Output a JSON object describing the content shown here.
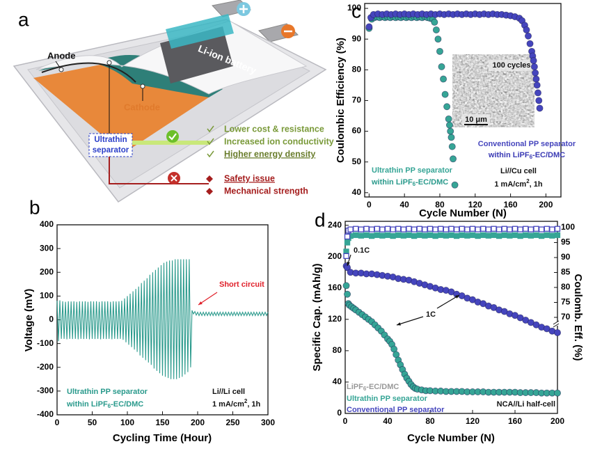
{
  "panel_a": {
    "label": "a",
    "battery": "Li-ion battery",
    "anode": "Anode",
    "cathode": "Cathode",
    "separator": [
      "Ultrathin",
      "separator"
    ],
    "advantages": [
      "Lower cost & resistance",
      "Increased ion conductivity",
      "Higher energy density"
    ],
    "issues": [
      "Safety issue",
      "Mechanical strength"
    ]
  },
  "chart_data": [
    {
      "type": "scatter",
      "panel": "c",
      "xlabel": "Cycle Number (N)",
      "ylabel": "Coulombic Efficiency (%)",
      "xlim": [
        -5,
        217
      ],
      "ylim": [
        38.6,
        101.6
      ],
      "xticks": [
        0,
        40,
        80,
        120,
        160,
        200
      ],
      "yticks": [
        40,
        50,
        60,
        70,
        80,
        90,
        100
      ],
      "series": [
        {
          "name": "Ultrathin PP separator",
          "color": "#36a596",
          "marker": "circle",
          "x": [
            0,
            3,
            6,
            9,
            12,
            15,
            18,
            21,
            24,
            27,
            30,
            33,
            36,
            39,
            42,
            45,
            48,
            51,
            54,
            57,
            60,
            63,
            66,
            69,
            72,
            74,
            76,
            78,
            80,
            82,
            84,
            86,
            88,
            90,
            91,
            92,
            93,
            94,
            95,
            97
          ],
          "values": [
            93.5,
            96.5,
            97,
            97.2,
            97,
            97.3,
            97,
            97.2,
            97,
            97.3,
            97,
            97.2,
            97,
            97.3,
            97,
            97.2,
            97,
            97.3,
            97,
            97.2,
            97,
            97.3,
            97,
            96.8,
            96.5,
            95.5,
            93,
            90,
            86,
            81,
            77,
            72,
            68,
            64,
            62,
            60,
            58,
            55,
            51,
            42.5
          ]
        },
        {
          "name": "Conventional PP separator",
          "color": "#4545bd",
          "marker": "circle",
          "x": [
            0,
            2,
            5,
            10,
            15,
            20,
            25,
            30,
            35,
            40,
            45,
            50,
            55,
            60,
            65,
            70,
            75,
            80,
            85,
            90,
            95,
            100,
            105,
            110,
            115,
            120,
            125,
            130,
            135,
            140,
            145,
            150,
            155,
            160,
            165,
            170,
            173,
            176,
            178,
            180,
            182,
            184,
            185,
            186,
            187,
            188,
            189,
            190,
            191,
            192,
            193
          ],
          "values": [
            94,
            97,
            98,
            98.2,
            98,
            98.2,
            98,
            98.2,
            98,
            98.2,
            98,
            98.2,
            98,
            98.2,
            98,
            98.2,
            98,
            98.2,
            98,
            98.2,
            98,
            98.2,
            98,
            98.2,
            98,
            98.2,
            98,
            98.2,
            98,
            98.2,
            98,
            98,
            97.8,
            97.6,
            97.3,
            96.8,
            96,
            94.5,
            93,
            91,
            88.5,
            86,
            84.5,
            83,
            81,
            79,
            77,
            75,
            72.5,
            70,
            67.5
          ]
        }
      ],
      "annotations": [
        [
          "within LiPF",
          "6",
          "-EC/DMC"
        ],
        [
          "within LiPF",
          "6",
          "-EC/DMC"
        ],
        "Li//Cu cell",
        [
          "1 mA/cm",
          "2",
          ", 1h"
        ],
        "100 cycles",
        "10 μm"
      ]
    },
    {
      "type": "line",
      "panel": "b",
      "xlabel": "Cycling Time (Hour)",
      "ylabel": "Voltage (mV)",
      "xlim": [
        0,
        300
      ],
      "ylim": [
        -400,
        400
      ],
      "xticks": [
        0,
        50,
        100,
        150,
        200,
        250,
        300
      ],
      "yticks": [
        -400,
        -300,
        -200,
        -100,
        0,
        100,
        200,
        300,
        400
      ],
      "x": [
        0,
        2,
        4,
        6,
        8,
        10,
        12,
        14,
        16,
        18,
        20,
        22,
        24,
        26,
        28,
        30,
        32,
        34,
        36,
        38,
        40,
        42,
        44,
        46,
        48,
        50,
        52,
        54,
        56,
        58,
        60,
        62,
        64,
        66,
        68,
        70,
        72,
        74,
        76,
        78,
        80,
        82,
        84,
        86,
        88,
        90,
        92,
        94,
        96,
        98,
        100,
        102,
        104,
        106,
        108,
        110,
        112,
        114,
        116,
        118,
        120,
        122,
        124,
        126,
        128,
        130,
        132,
        134,
        136,
        138,
        140,
        142,
        144,
        146,
        148,
        150,
        152,
        154,
        156,
        158,
        160,
        162,
        164,
        166,
        168,
        170,
        172,
        174,
        176,
        178,
        180,
        182,
        184,
        186,
        188,
        190,
        192,
        194,
        196,
        198,
        200,
        202,
        204,
        206,
        208,
        210,
        212,
        214,
        216,
        218,
        220,
        222,
        224,
        226,
        228,
        230,
        232,
        234,
        236,
        238,
        240,
        242,
        244,
        246,
        248,
        250,
        252,
        254,
        256,
        258,
        260,
        262,
        264,
        266,
        268,
        270,
        272,
        274,
        276,
        278,
        280,
        282,
        284,
        286,
        288,
        290,
        292,
        294,
        296,
        298,
        300
      ],
      "series": [
        {
          "name": "Ultrathin PP separator",
          "color": "#2a9a8c",
          "values": [
            80,
            -90,
            82,
            -80,
            78,
            -80,
            76,
            -82,
            78,
            -80,
            77,
            -81,
            78,
            -80,
            76,
            -82,
            78,
            -80,
            77,
            -81,
            78,
            -80,
            76,
            -82,
            78,
            -80,
            77,
            -81,
            78,
            -80,
            76,
            -82,
            78,
            -80,
            77,
            -81,
            78,
            -80,
            76,
            -82,
            78,
            -80,
            77,
            -81,
            78,
            -80,
            80,
            -84,
            90,
            -95,
            100,
            -105,
            110,
            -115,
            120,
            -125,
            130,
            -135,
            140,
            -150,
            155,
            -160,
            165,
            -170,
            175,
            -180,
            190,
            -190,
            200,
            -205,
            210,
            -215,
            220,
            -225,
            230,
            -235,
            240,
            -240,
            245,
            -245,
            250,
            -250,
            250,
            -250,
            255,
            -250,
            255,
            -245,
            255,
            -240,
            255,
            -230,
            255,
            -220,
            255,
            -200,
            40,
            25,
            35,
            20,
            32,
            18,
            32,
            18,
            32,
            18,
            32,
            18,
            32,
            18,
            32,
            18,
            32,
            18,
            32,
            18,
            32,
            18,
            32,
            18,
            32,
            18,
            32,
            18,
            32,
            18,
            32,
            18,
            32,
            18,
            32,
            18,
            32,
            18,
            32,
            18,
            32,
            18,
            32,
            18,
            32,
            18,
            32,
            18,
            32,
            18,
            32,
            18,
            32,
            18,
            32
          ]
        }
      ],
      "annotations": [
        "Short circuit",
        [
          "within LiPF",
          "6",
          "-EC/DMC"
        ],
        "Li//Li cell",
        [
          "1 mA/cm",
          "2",
          ", 1h"
        ]
      ]
    },
    {
      "type": "scatter",
      "panel": "d",
      "xlabel": "Cycle Number (N)",
      "ylabel": "Specific Cap. (mAh/g)",
      "y2label": "Coulomb. Eff. (%)",
      "xlim": [
        0,
        200
      ],
      "ylim": [
        0,
        245
      ],
      "y2lim": [
        37.9,
        102.1
      ],
      "xticks": [
        0,
        40,
        80,
        120,
        160,
        200
      ],
      "yticks": [
        0,
        40,
        80,
        120,
        160,
        200,
        240
      ],
      "y2ticks": [
        70,
        75,
        80,
        85,
        90,
        95,
        100
      ],
      "series": [
        {
          "name": "Ultrathin PP separator",
          "color": "#36a596",
          "marker": "circle",
          "x": [
            1,
            2,
            3,
            4,
            6,
            8,
            10,
            13,
            16,
            19,
            22,
            25,
            28,
            31,
            34,
            37,
            40,
            42,
            44,
            46,
            48,
            50,
            52,
            54,
            56,
            58,
            60,
            62,
            64,
            66,
            68,
            72,
            76,
            80,
            85,
            90,
            95,
            100,
            105,
            110,
            115,
            120,
            125,
            130,
            135,
            140,
            145,
            150,
            155,
            160,
            165,
            170,
            175,
            180,
            185,
            190,
            195,
            200
          ],
          "values": [
            163,
            152,
            140,
            138,
            136,
            134,
            132,
            129,
            126,
            123,
            120,
            117,
            113,
            109,
            105,
            100,
            95,
            92,
            88,
            82,
            75,
            68,
            62,
            56,
            50,
            45,
            41,
            37,
            34,
            32,
            31,
            30,
            29,
            29,
            28.5,
            28.5,
            28,
            28,
            28,
            28,
            27.5,
            27.5,
            27.5,
            27.5,
            27,
            27,
            27,
            27,
            27,
            27,
            26.5,
            26.5,
            26.5,
            26.5,
            26,
            26,
            26,
            26
          ]
        },
        {
          "name": "Conventional PP separator",
          "color": "#4545bd",
          "marker": "circle",
          "x": [
            1,
            2,
            5,
            10,
            15,
            20,
            25,
            30,
            35,
            40,
            45,
            50,
            55,
            60,
            65,
            70,
            75,
            80,
            85,
            90,
            95,
            100,
            105,
            110,
            115,
            120,
            125,
            130,
            135,
            140,
            145,
            150,
            155,
            160,
            165,
            170,
            175,
            180,
            185,
            190,
            195,
            200
          ],
          "values": [
            188,
            186,
            180,
            179,
            179,
            178,
            178,
            177,
            176,
            175,
            174,
            172,
            171,
            170,
            168,
            166,
            164,
            162,
            160,
            158,
            157,
            155,
            152,
            150,
            147,
            145,
            142,
            140,
            137,
            135,
            132,
            130,
            127,
            125,
            122,
            119,
            116,
            113,
            110,
            108,
            105,
            103
          ]
        },
        {
          "color": "#36a596",
          "marker": "square",
          "axis": "y2",
          "x": [
            1,
            2,
            3,
            5,
            10,
            15,
            20,
            25,
            30,
            35,
            40,
            45,
            50,
            55,
            60,
            65,
            70,
            75,
            80,
            85,
            90,
            95,
            100,
            105,
            110,
            115,
            120,
            125,
            130,
            135,
            140,
            145,
            150,
            155,
            160,
            165,
            170,
            175,
            180,
            185,
            190,
            195,
            200
          ],
          "values": [
            92,
            95,
            96.5,
            97.2,
            97.5,
            97.3,
            97.5,
            97.2,
            97.5,
            97.3,
            97.5,
            97.2,
            97.5,
            97.3,
            97.5,
            97.2,
            97.5,
            97.3,
            97.5,
            97.2,
            97.5,
            97.3,
            97.5,
            97.2,
            97.5,
            97.3,
            97.5,
            97.2,
            97.5,
            97.3,
            97.5,
            97.2,
            97.5,
            97.3,
            97.5,
            97.2,
            97.5,
            97.3,
            97.5,
            97.2,
            97.5,
            97.3,
            97.5
          ]
        },
        {
          "color": "#4545bd",
          "marker": "open-square",
          "axis": "y2",
          "x": [
            1,
            2,
            3,
            5,
            10,
            15,
            20,
            25,
            30,
            35,
            40,
            45,
            50,
            55,
            60,
            65,
            70,
            75,
            80,
            85,
            90,
            95,
            100,
            105,
            110,
            115,
            120,
            125,
            130,
            135,
            140,
            145,
            150,
            155,
            160,
            165,
            170,
            175,
            180,
            185,
            190,
            195,
            200
          ],
          "values": [
            90.5,
            97,
            99,
            99.4,
            99.6,
            99.4,
            99.6,
            99.4,
            99.6,
            99.4,
            99.6,
            99.4,
            99.6,
            99.4,
            99.6,
            99.4,
            99.6,
            99.4,
            99.6,
            99.4,
            99.6,
            99.4,
            99.6,
            99.4,
            99.6,
            99.4,
            99.6,
            99.4,
            99.6,
            99.4,
            99.6,
            99.4,
            99.6,
            99.4,
            99.6,
            99.4,
            99.6,
            99.4,
            99.6,
            99.4,
            99.6,
            99.4,
            99.6
          ]
        }
      ],
      "annotations": [
        "0.1C",
        "1C",
        [
          "LiPF",
          "6",
          "-EC/DMC"
        ],
        "NCA//Li half-cell"
      ]
    }
  ]
}
